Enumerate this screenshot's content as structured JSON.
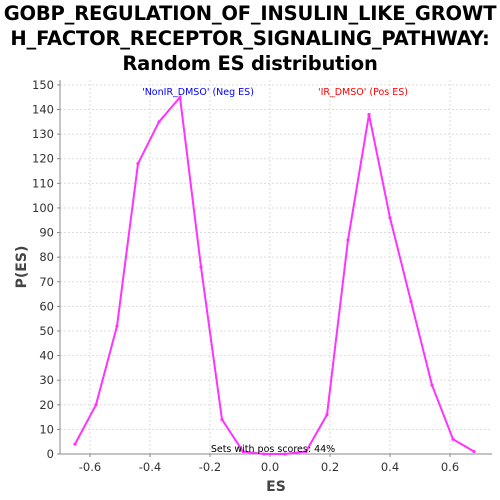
{
  "chart_data": {
    "type": "line",
    "title_lines": [
      "GOBP_REGULATION_OF_INSULIN_LIKE_GROWT",
      "H_FACTOR_RECEPTOR_SIGNALING_PATHWAY:",
      "Random ES distribution"
    ],
    "xlabel": "ES",
    "ylabel": "P(ES)",
    "xlim": [
      -0.7,
      0.74
    ],
    "ylim": [
      0,
      152
    ],
    "x_ticks": [
      -0.6,
      -0.4,
      -0.2,
      0.0,
      0.2,
      0.4,
      0.6
    ],
    "x_tick_labels": [
      "-0.6",
      "-0.4",
      "-0.2",
      "0.0",
      "0.2",
      "0.4",
      "0.6"
    ],
    "y_ticks": [
      0,
      10,
      20,
      30,
      40,
      50,
      60,
      70,
      80,
      90,
      100,
      110,
      120,
      130,
      140,
      150
    ],
    "grid": true,
    "line_color": "#ff33ff",
    "series": [
      {
        "x": [
          -0.65,
          -0.58,
          -0.51,
          -0.44,
          -0.37,
          -0.3,
          -0.23,
          -0.16,
          -0.09,
          -0.02,
          0.05,
          0.12,
          0.19,
          0.26,
          0.33,
          0.4,
          0.47,
          0.54,
          0.61,
          0.68
        ],
        "values": [
          4,
          20,
          52,
          118,
          135,
          145,
          76,
          14,
          1,
          0,
          0,
          1,
          16,
          87,
          138,
          96,
          62,
          28,
          6,
          1
        ]
      }
    ],
    "annotations": {
      "neg_label": "'NonIR_DMSO' (Neg ES)",
      "neg_color": "#0000ff",
      "pos_label": "'IR_DMSO' (Pos ES)",
      "pos_color": "#ff0000",
      "footer": "Sets with pos scores: 44%"
    }
  }
}
